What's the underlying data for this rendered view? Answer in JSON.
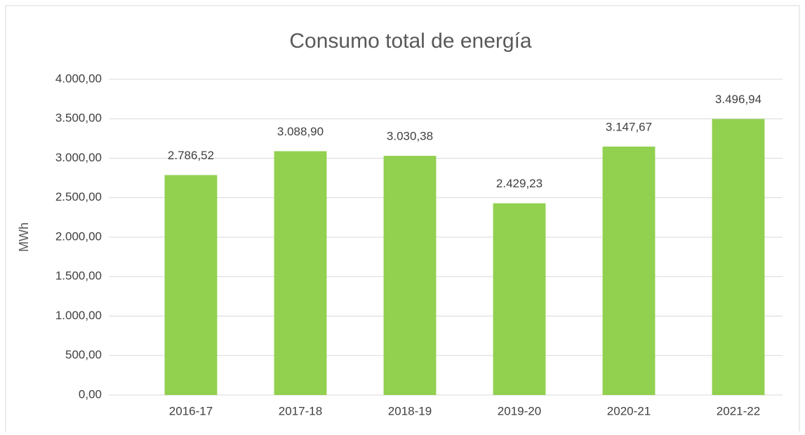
{
  "chart_data": {
    "type": "bar",
    "title": "Consumo total de energía",
    "y_label": "MWh",
    "categories": [
      "2016-17",
      "2017-18",
      "2018-19",
      "2019-20",
      "2020-21",
      "2021-22"
    ],
    "values": [
      2786.52,
      3088.9,
      3030.38,
      2429.23,
      3147.67,
      3496.94
    ],
    "value_labels": [
      "2.786,52",
      "3.088,90",
      "3.030,38",
      "2.429,23",
      "3.147,67",
      "3.496,94"
    ],
    "color": "#92d050",
    "ylim": [
      0,
      4000
    ],
    "yticks": [
      {
        "value": 0,
        "label": "0,00"
      },
      {
        "value": 500,
        "label": "500,00"
      },
      {
        "value": 1000,
        "label": "1.000,00"
      },
      {
        "value": 1500,
        "label": "1.500,00"
      },
      {
        "value": 2000,
        "label": "2.000,00"
      },
      {
        "value": 2500,
        "label": "2.500,00"
      },
      {
        "value": 3000,
        "label": "3.000,00"
      },
      {
        "value": 3500,
        "label": "3.500,00"
      },
      {
        "value": 4000,
        "label": "4.000,00"
      }
    ],
    "grid": true
  }
}
